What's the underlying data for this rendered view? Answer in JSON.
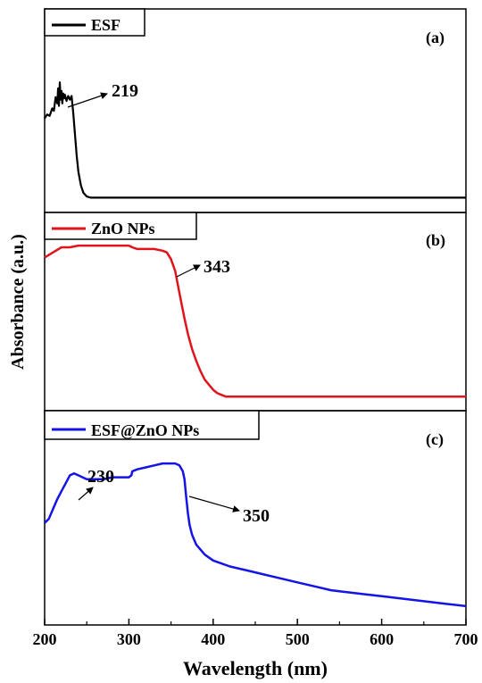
{
  "figure": {
    "ylabel": "Absorbance (a.u.)",
    "xlabel": "Wavelength (nm)"
  },
  "chart_data": [
    {
      "type": "line",
      "panel_label": "(a)",
      "xlim": [
        200,
        700
      ],
      "series": [
        {
          "name": "ESF",
          "color": "#000000",
          "x": [
            200,
            203,
            206,
            209,
            211,
            213,
            215,
            216,
            217,
            218,
            219,
            220,
            221,
            222,
            223,
            224,
            226,
            228,
            230,
            232,
            234,
            236,
            238,
            240,
            243,
            246,
            250,
            255,
            260,
            280,
            300,
            350,
            400,
            450,
            500,
            550,
            600,
            650,
            700
          ],
          "y": [
            0.68,
            0.71,
            0.7,
            0.76,
            0.74,
            0.85,
            0.8,
            0.92,
            0.78,
            0.97,
            0.83,
            0.9,
            0.8,
            0.88,
            0.84,
            0.87,
            0.82,
            0.86,
            0.83,
            0.86,
            0.72,
            0.55,
            0.38,
            0.25,
            0.14,
            0.08,
            0.05,
            0.04,
            0.04,
            0.04,
            0.04,
            0.04,
            0.04,
            0.04,
            0.04,
            0.04,
            0.04,
            0.04,
            0.04
          ]
        }
      ],
      "annotations": [
        {
          "text": "219",
          "x": 219
        }
      ]
    },
    {
      "type": "line",
      "panel_label": "(b)",
      "xlim": [
        200,
        700
      ],
      "series": [
        {
          "name": "ZnO NPs",
          "color": "#e0141c",
          "x": [
            200,
            210,
            220,
            230,
            240,
            250,
            260,
            280,
            300,
            304,
            310,
            320,
            330,
            340,
            345,
            350,
            355,
            358,
            362,
            366,
            370,
            375,
            380,
            385,
            390,
            395,
            400,
            405,
            410,
            415,
            420,
            430,
            440,
            460,
            500,
            550,
            600,
            650,
            700
          ],
          "y": [
            0.84,
            0.87,
            0.9,
            0.9,
            0.91,
            0.91,
            0.91,
            0.91,
            0.91,
            0.9,
            0.89,
            0.89,
            0.89,
            0.88,
            0.87,
            0.83,
            0.76,
            0.68,
            0.58,
            0.48,
            0.39,
            0.3,
            0.23,
            0.17,
            0.12,
            0.09,
            0.06,
            0.04,
            0.03,
            0.02,
            0.02,
            0.02,
            0.02,
            0.02,
            0.02,
            0.02,
            0.02,
            0.02,
            0.02
          ]
        }
      ],
      "annotations": [
        {
          "text": "343",
          "x": 343
        }
      ]
    },
    {
      "type": "line",
      "panel_label": "(c)",
      "xlim": [
        200,
        700
      ],
      "xticks": [
        200,
        300,
        400,
        500,
        600,
        700
      ],
      "series": [
        {
          "name": "ESF@ZnO NPs",
          "color": "#1414e6",
          "x": [
            200,
            205,
            210,
            215,
            220,
            225,
            230,
            235,
            240,
            245,
            250,
            260,
            270,
            280,
            290,
            300,
            303,
            304,
            310,
            320,
            330,
            340,
            350,
            355,
            360,
            364,
            366,
            368,
            370,
            372,
            375,
            380,
            390,
            400,
            420,
            440,
            460,
            480,
            500,
            520,
            540,
            560,
            580,
            600,
            620,
            640,
            660,
            680,
            700
          ],
          "y": [
            0.47,
            0.49,
            0.54,
            0.59,
            0.63,
            0.67,
            0.71,
            0.72,
            0.71,
            0.7,
            0.69,
            0.69,
            0.69,
            0.7,
            0.7,
            0.7,
            0.71,
            0.73,
            0.74,
            0.75,
            0.76,
            0.77,
            0.77,
            0.77,
            0.76,
            0.73,
            0.69,
            0.6,
            0.52,
            0.46,
            0.41,
            0.36,
            0.31,
            0.28,
            0.25,
            0.23,
            0.21,
            0.19,
            0.17,
            0.15,
            0.13,
            0.12,
            0.11,
            0.1,
            0.09,
            0.08,
            0.07,
            0.06,
            0.05
          ]
        }
      ],
      "annotations": [
        {
          "text": "230",
          "x": 230
        },
        {
          "text": "350",
          "x": 350
        }
      ]
    }
  ]
}
